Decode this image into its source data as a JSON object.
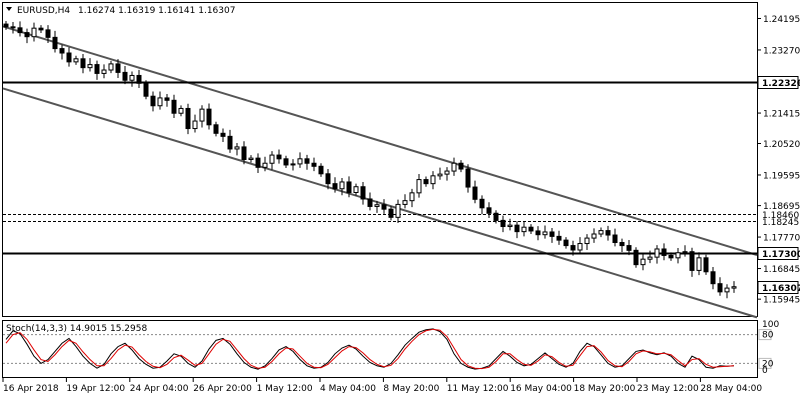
{
  "header": {
    "symbol": "EURUSD,H4",
    "ohlc": "1.16274 1.16319 1.16141 1.16307"
  },
  "price_axis": {
    "ticks": [
      "1.24195",
      "1.23270",
      "1.22320",
      "1.21415",
      "1.20520",
      "1.19595",
      "1.18695",
      "1.17770",
      "1.16845",
      "1.15945"
    ]
  },
  "levels": [
    {
      "label": "1.22320",
      "price": 1.2232,
      "style": "solid"
    },
    {
      "label": "1.18460",
      "price": 1.1846,
      "style": "dashed"
    },
    {
      "label": "1.18245",
      "price": 1.18245,
      "style": "dashed"
    },
    {
      "label": "1.17300",
      "price": 1.173,
      "style": "solid"
    },
    {
      "label": "1.16307",
      "price": 1.16307,
      "style": "current"
    }
  ],
  "indicator": {
    "label": "Stoch(14,3,3) 14.9015 15.2958",
    "ticks": [
      "100",
      "80",
      "20",
      "0"
    ]
  },
  "time_axis": {
    "labels": [
      "16 Apr 2018",
      "19 Apr 12:00",
      "24 Apr 04:00",
      "26 Apr 20:00",
      "1 May 12:00",
      "4 May 04:00",
      "8 May 20:00",
      "11 May 12:00",
      "16 May 04:00",
      "18 May 20:00",
      "23 May 12:00",
      "28 May 04:00"
    ]
  },
  "chart_data": {
    "type": "candlestick",
    "instrument": "EURUSD",
    "timeframe": "H4",
    "ylim": [
      1.1545,
      1.2465
    ],
    "trend_channel": {
      "upper": [
        [
          0.0,
          1.2396
        ],
        [
          1.0,
          1.1724
        ]
      ],
      "lower": [
        [
          0.0,
          1.2214
        ],
        [
          1.0,
          1.1541
        ]
      ]
    },
    "price_path": [
      1.2395,
      1.2392,
      1.2378,
      1.2366,
      1.2391,
      1.2386,
      1.2364,
      1.2331,
      1.2318,
      1.2292,
      1.2301,
      1.2275,
      1.2284,
      1.2258,
      1.2268,
      1.2286,
      1.2261,
      1.2238,
      1.2252,
      1.2229,
      1.2191,
      1.2163,
      1.2186,
      1.2179,
      1.2141,
      1.2155,
      1.2096,
      1.2118,
      1.2153,
      1.2107,
      1.2082,
      1.2073,
      1.2036,
      1.2042,
      1.2005,
      1.2009,
      1.1982,
      1.1994,
      1.2018,
      1.2007,
      1.1989,
      1.1992,
      1.2007,
      1.1994,
      1.1985,
      1.1963,
      1.1934,
      1.1919,
      1.1939,
      1.1908,
      1.1925,
      1.1889,
      1.1867,
      1.1872,
      1.1859,
      1.1835,
      1.1873,
      1.1884,
      1.1907,
      1.1946,
      1.1934,
      1.1957,
      1.1962,
      1.1971,
      1.1994,
      1.1977,
      1.1924,
      1.1888,
      1.1863,
      1.1847,
      1.1826,
      1.1808,
      1.1812,
      1.1793,
      1.1806,
      1.1795,
      1.1784,
      1.1792,
      1.1779,
      1.1768,
      1.1752,
      1.1739,
      1.1758,
      1.1774,
      1.1786,
      1.1796,
      1.1783,
      1.1761,
      1.1752,
      1.1738,
      1.1696,
      1.1712,
      1.1718,
      1.1742,
      1.1723,
      1.1716,
      1.1731,
      1.1734,
      1.1679,
      1.1716,
      1.1675,
      1.164,
      1.1616,
      1.1627,
      1.1631
    ],
    "stochastic": {
      "name": "Stoch(14,3,3)",
      "main_value": 14.9015,
      "signal_value": 15.2958,
      "ylim": [
        0,
        100
      ],
      "levels": [
        80,
        20
      ],
      "main": [
        70,
        88,
        82,
        60,
        35,
        20,
        28,
        45,
        62,
        72,
        55,
        35,
        20,
        10,
        18,
        40,
        55,
        62,
        48,
        30,
        18,
        10,
        12,
        25,
        40,
        35,
        20,
        12,
        25,
        50,
        68,
        72,
        60,
        40,
        22,
        12,
        8,
        15,
        30,
        48,
        55,
        45,
        28,
        15,
        10,
        12,
        22,
        40,
        52,
        58,
        50,
        35,
        22,
        15,
        12,
        20,
        38,
        58,
        72,
        85,
        90,
        92,
        86,
        70,
        40,
        20,
        12,
        8,
        10,
        15,
        30,
        45,
        35,
        22,
        15,
        18,
        30,
        42,
        30,
        18,
        12,
        20,
        45,
        62,
        55,
        38,
        20,
        12,
        15,
        30,
        45,
        48,
        42,
        38,
        42,
        35,
        20,
        12,
        35,
        28,
        12,
        10,
        15,
        14,
        15
      ],
      "signal": [
        62,
        80,
        84,
        70,
        48,
        28,
        24,
        38,
        55,
        68,
        62,
        44,
        28,
        15,
        15,
        30,
        48,
        58,
        54,
        38,
        24,
        14,
        11,
        18,
        32,
        37,
        27,
        16,
        20,
        40,
        60,
        70,
        66,
        48,
        30,
        16,
        10,
        12,
        24,
        40,
        52,
        50,
        35,
        20,
        12,
        11,
        18,
        32,
        46,
        55,
        53,
        42,
        28,
        18,
        13,
        16,
        30,
        50,
        66,
        80,
        88,
        91,
        89,
        76,
        52,
        28,
        15,
        10,
        9,
        12,
        24,
        40,
        40,
        28,
        18,
        16,
        25,
        38,
        34,
        22,
        14,
        16,
        36,
        55,
        57,
        44,
        26,
        15,
        13,
        24,
        40,
        46,
        44,
        40,
        41,
        38,
        26,
        15,
        28,
        30,
        18,
        12,
        13,
        14,
        15
      ]
    }
  }
}
